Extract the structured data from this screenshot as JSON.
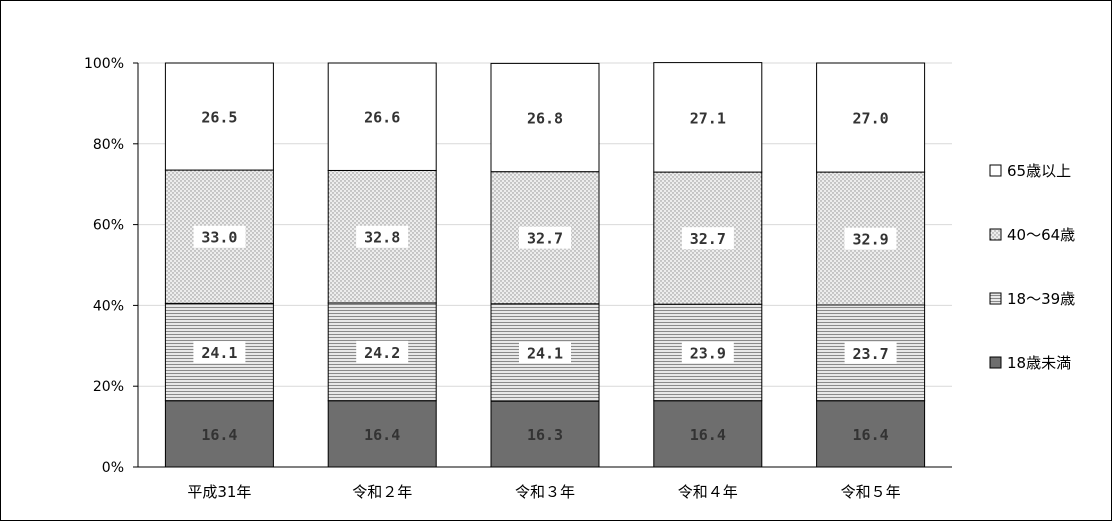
{
  "chart_data": {
    "type": "bar",
    "stacked": true,
    "categories": [
      "平成31年",
      "令和２年",
      "令和３年",
      "令和４年",
      "令和５年"
    ],
    "series": [
      {
        "name": "18歳未満",
        "values": [
          16.4,
          16.4,
          16.3,
          16.4,
          16.4
        ],
        "pattern": "solid",
        "color": "#6e6e6e",
        "label_color": "#ffffff"
      },
      {
        "name": "18～39歳",
        "values": [
          24.1,
          24.2,
          24.1,
          23.9,
          23.7
        ],
        "pattern": "horizontal-lines",
        "color": "#ffffff",
        "label_color": "#333333"
      },
      {
        "name": "40～64歳",
        "values": [
          33.0,
          32.8,
          32.7,
          32.7,
          32.9
        ],
        "pattern": "dots",
        "color": "#e8e8e8",
        "label_color": "#333333"
      },
      {
        "name": "65歳以上",
        "values": [
          26.5,
          26.6,
          26.8,
          27.1,
          27.0
        ],
        "pattern": "none",
        "color": "#ffffff",
        "label_color": "#333333"
      }
    ],
    "value_labels": {
      "18歳未満": [
        "16.4",
        "16.4",
        "16.3",
        "16.4",
        "16.4"
      ],
      "18～39歳": [
        "24.1",
        "24.2",
        "24.1",
        "23.9",
        "23.7"
      ],
      "40～64歳": [
        "33.0",
        "32.8",
        "32.7",
        "32.7",
        "32.9"
      ],
      "65歳以上": [
        "26.5",
        "26.6",
        "26.8",
        "27.1",
        "27.0"
      ]
    },
    "y_ticks": [
      "0%",
      "20%",
      "40%",
      "60%",
      "80%",
      "100%"
    ],
    "ylim": [
      0,
      100
    ],
    "grid": true,
    "legend_placement": "right",
    "legend_order": [
      "65歳以上",
      "40～64歳",
      "18～39歳",
      "18歳未満"
    ]
  }
}
